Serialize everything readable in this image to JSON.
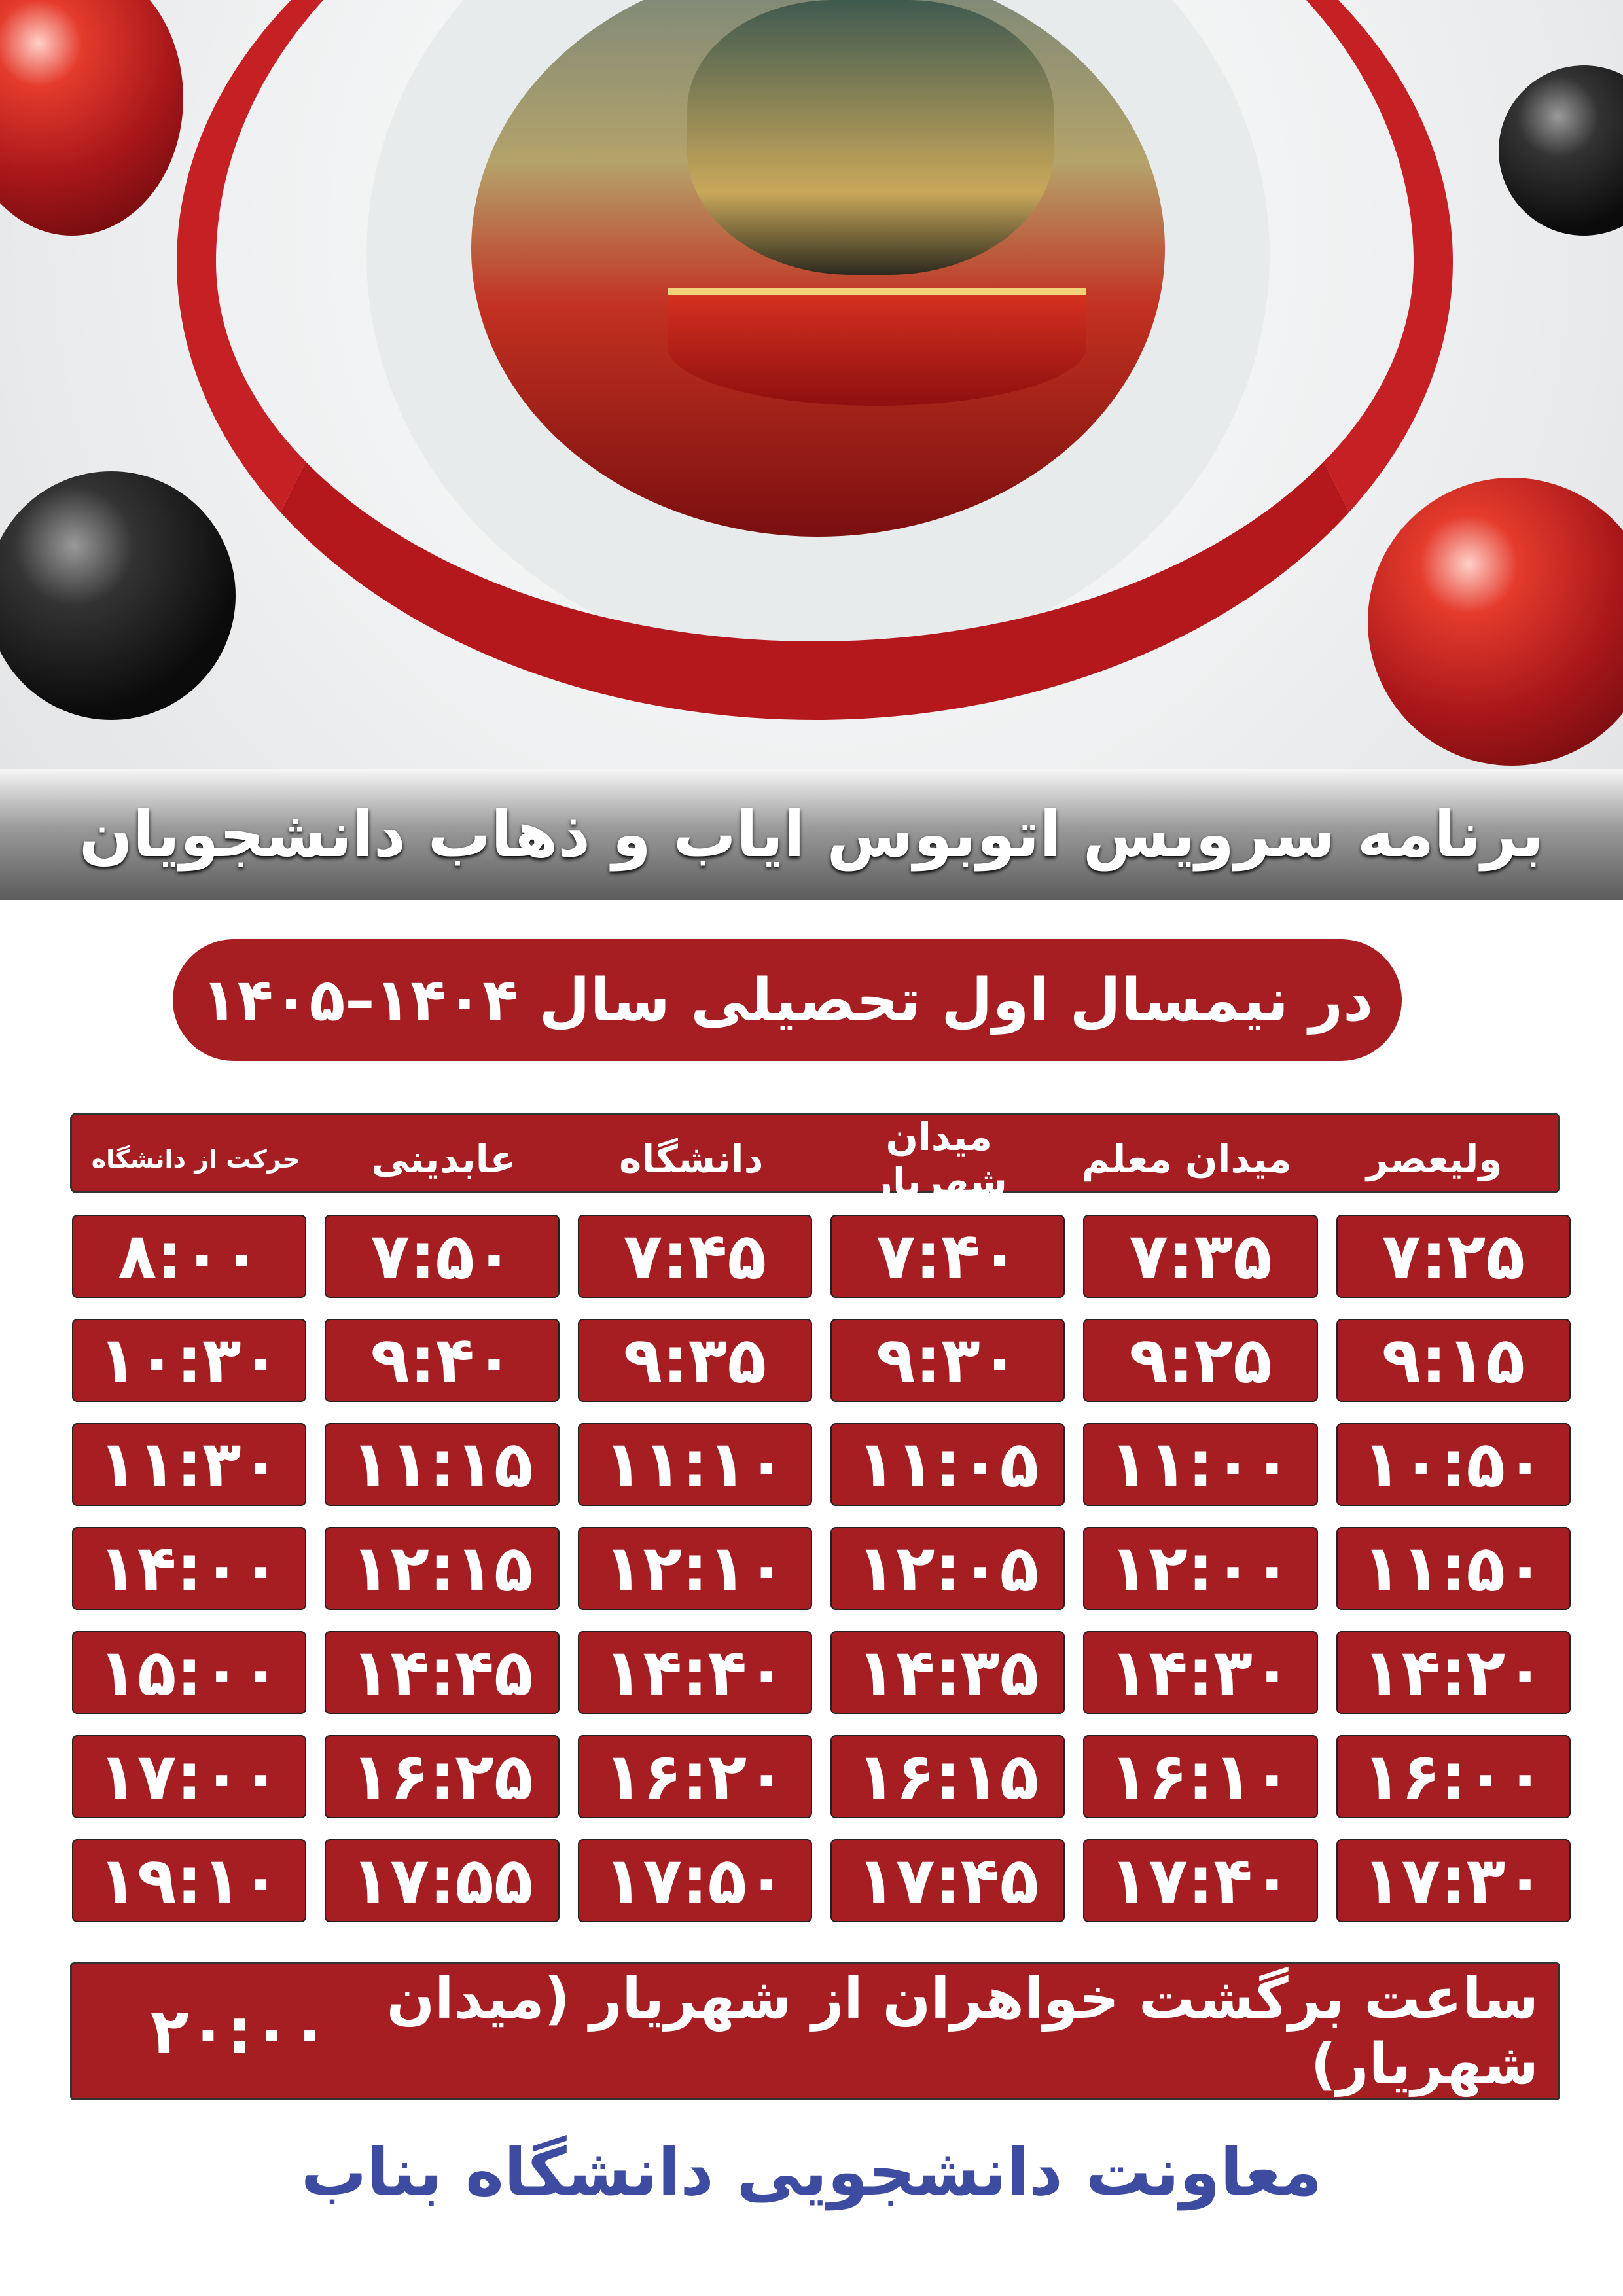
{
  "title": "برنامه سرویس اتوبوس ایاب و ذهاب دانشجویان",
  "subtitle": "در نیمسال اول تحصیلی سال ۱۴۰۴–۱۴۰۵",
  "colors": {
    "accent_red": "#a61d22",
    "footer_blue": "#3d4ba0"
  },
  "table": {
    "headers": [
      "ولیعصر",
      "میدان معلم",
      "میدان شهریار",
      "دانشگاه",
      "عابدینی",
      "حرکت از دانشگاه"
    ],
    "rows": [
      [
        "۷:۲۵",
        "۷:۳۵",
        "۷:۴۰",
        "۷:۴۵",
        "۷:۵۰",
        "۸:۰۰"
      ],
      [
        "۹:۱۵",
        "۹:۲۵",
        "۹:۳۰",
        "۹:۳۵",
        "۹:۴۰",
        "۱۰:۳۰"
      ],
      [
        "۱۰:۵۰",
        "۱۱:۰۰",
        "۱۱:۰۵",
        "۱۱:۱۰",
        "۱۱:۱۵",
        "۱۱:۳۰"
      ],
      [
        "۱۱:۵۰",
        "۱۲:۰۰",
        "۱۲:۰۵",
        "۱۲:۱۰",
        "۱۲:۱۵",
        "۱۴:۰۰"
      ],
      [
        "۱۴:۲۰",
        "۱۴:۳۰",
        "۱۴:۳۵",
        "۱۴:۴۰",
        "۱۴:۴۵",
        "۱۵:۰۰"
      ],
      [
        "۱۶:۰۰",
        "۱۶:۱۰",
        "۱۶:۱۵",
        "۱۶:۲۰",
        "۱۶:۲۵",
        "۱۷:۰۰"
      ],
      [
        "۱۷:۳۰",
        "۱۷:۴۰",
        "۱۷:۴۵",
        "۱۷:۵۰",
        "۱۷:۵۵",
        "۱۹:۱۰"
      ]
    ]
  },
  "return_trip": {
    "label": "ساعت برگشت خواهران از شهریار (میدان شهریار)",
    "time": "۲۰:۰۰"
  },
  "footer": "معاونت دانشجویی دانشگاه بناب"
}
